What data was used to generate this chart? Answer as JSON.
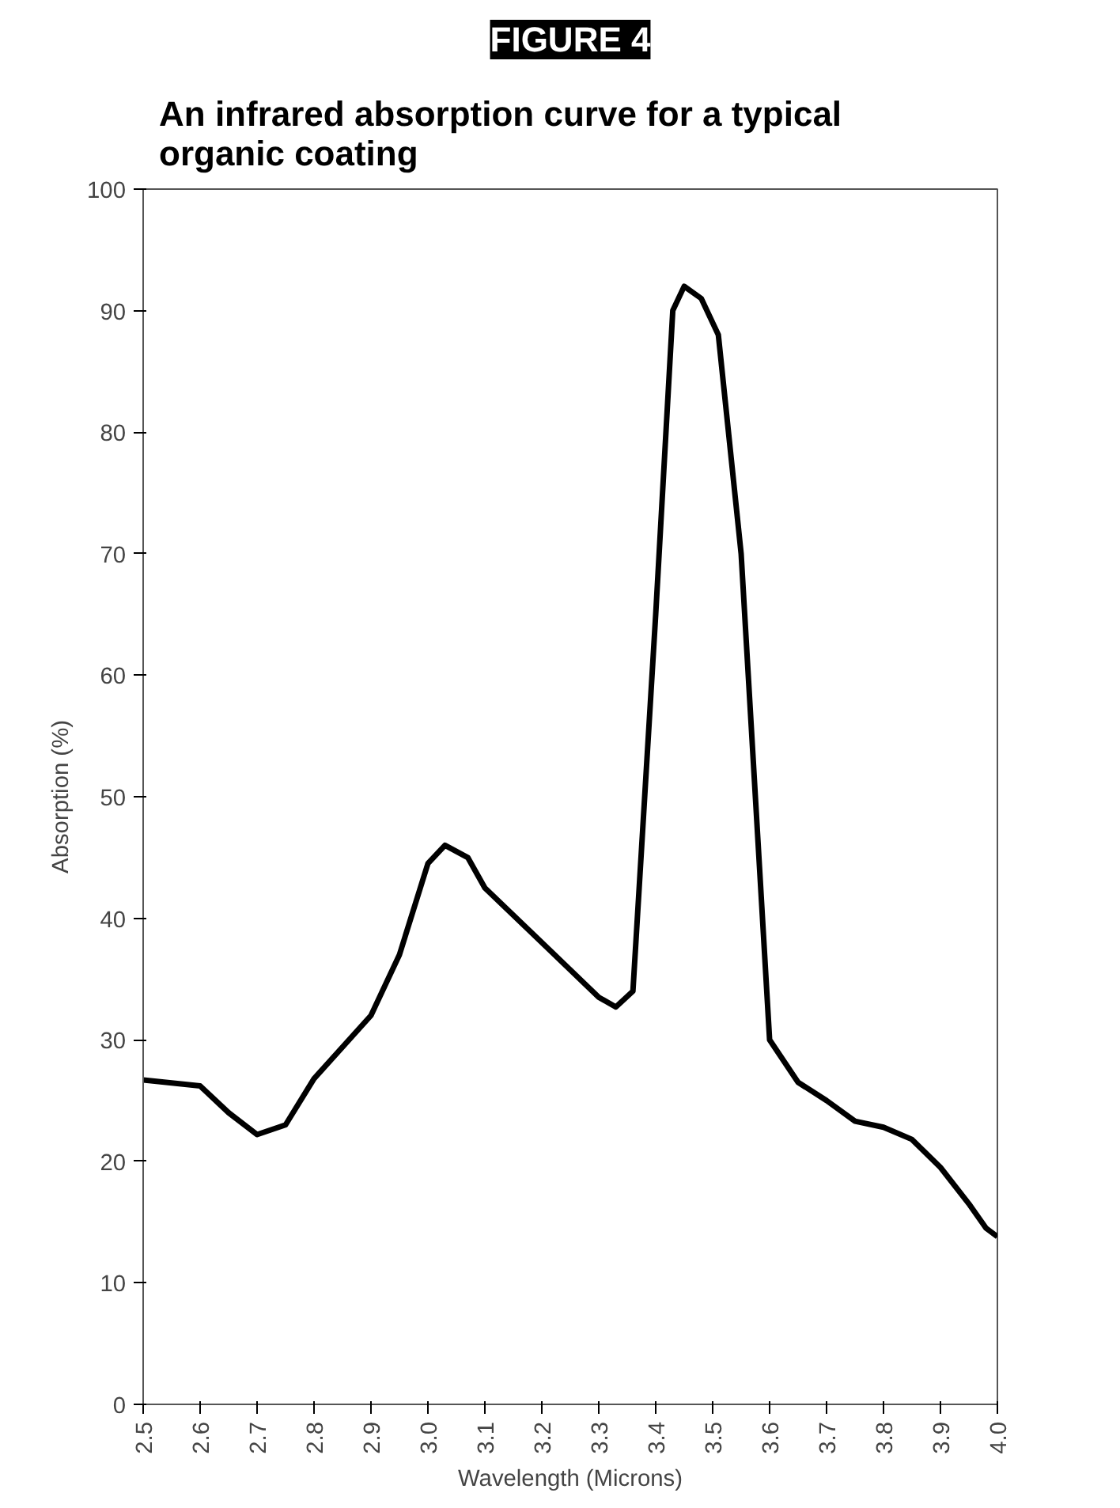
{
  "chart_data": {
    "type": "line",
    "title": "FIGURE 4",
    "subtitle": "An infrared absorption curve for a typical organic coating",
    "xlabel": "Wavelength (Microns)",
    "ylabel": "Absorption (%)",
    "x": [
      2.5,
      2.6,
      2.65,
      2.7,
      2.75,
      2.8,
      2.9,
      2.95,
      3.0,
      3.03,
      3.07,
      3.1,
      3.2,
      3.3,
      3.33,
      3.36,
      3.4,
      3.43,
      3.45,
      3.48,
      3.51,
      3.55,
      3.6,
      3.65,
      3.7,
      3.75,
      3.8,
      3.85,
      3.9,
      3.95,
      3.98,
      4.0
    ],
    "series": [
      {
        "color": "#000000",
        "values": [
          26.7,
          26.2,
          24,
          22.2,
          23,
          26.8,
          32,
          37,
          44.5,
          46,
          45,
          42.5,
          38,
          33.5,
          32.7,
          34,
          65,
          90,
          92,
          91,
          88,
          70,
          30,
          26.5,
          25,
          23.3,
          22.8,
          21.8,
          19.5,
          16.5,
          14.5,
          13.8
        ]
      }
    ],
    "xlim": [
      2.5,
      4.0
    ],
    "ylim": [
      0,
      100
    ],
    "xticks": [
      2.5,
      2.6,
      2.7,
      2.8,
      2.9,
      {
        "value": 3.0,
        "label": "3.0"
      },
      3.1,
      3.2,
      3.3,
      3.4,
      3.5,
      3.6,
      3.7,
      3.8,
      3.9,
      {
        "value": 4.0,
        "label": "4.0"
      }
    ],
    "yticks": [
      0,
      10,
      20,
      30,
      40,
      50,
      60,
      70,
      80,
      90,
      100
    ],
    "grid": false,
    "marker": "none",
    "line_style": "solid"
  }
}
